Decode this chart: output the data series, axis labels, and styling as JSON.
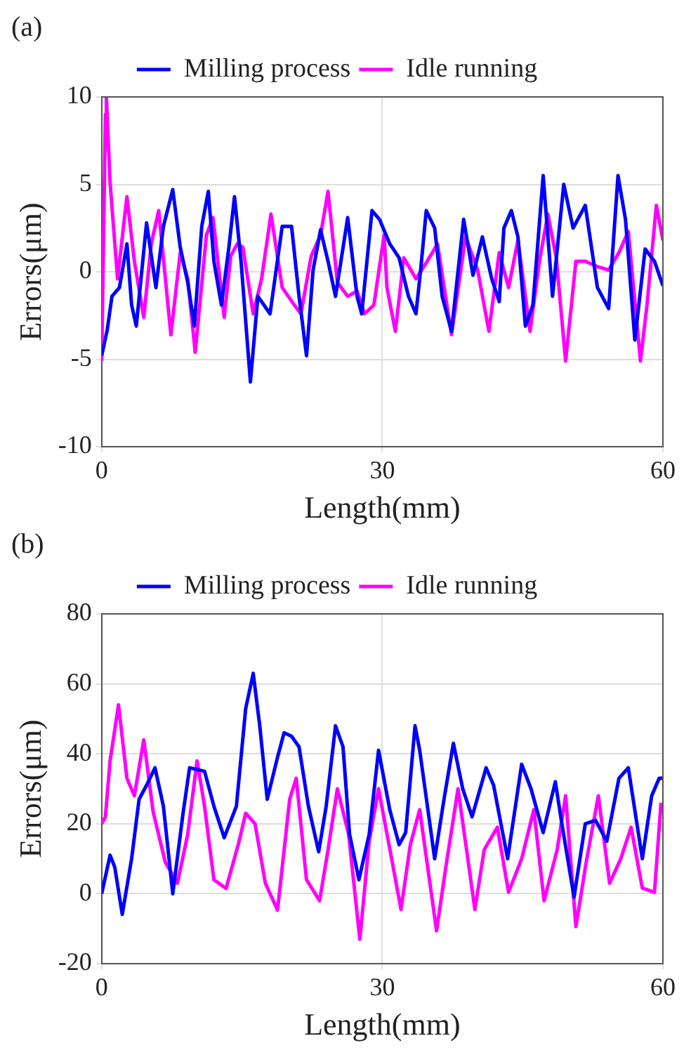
{
  "chart_data": [
    {
      "type": "line",
      "title": "(a)",
      "xlabel": "Length(mm)",
      "ylabel": "Errors(μm)",
      "xlim": [
        0,
        60
      ],
      "xticks": [
        0,
        30,
        60
      ],
      "ylim": [
        -10,
        10
      ],
      "yticks": [
        -10,
        -5,
        0,
        5,
        10
      ],
      "grid": true,
      "legend": "top",
      "line_style": "solid",
      "marker": "none",
      "series": [
        {
          "name": "Milling process",
          "color": "#0000ff",
          "x": [
            0,
            0.6,
            1.1,
            1.9,
            2.7,
            3.2,
            3.7,
            4.8,
            5.8,
            6.6,
            7.6,
            8.4,
            9.2,
            9.9,
            10.7,
            11.4,
            12.0,
            12.8,
            13.6,
            14.2,
            14.9,
            15.9,
            16.7,
            18.0,
            19.3,
            20.3,
            21.1,
            21.9,
            22.6,
            23.4,
            24.2,
            25.0,
            26.3,
            27.3,
            27.8,
            28.9,
            29.7,
            30.8,
            31.8,
            32.8,
            33.6,
            34.1,
            34.7,
            35.6,
            36.4,
            37.4,
            38.7,
            39.7,
            40.7,
            41.7,
            42.5,
            43.0,
            43.8,
            44.5,
            45.3,
            46.1,
            47.2,
            48.2,
            49.4,
            50.4,
            51.7,
            53.0,
            54.2,
            55.2,
            56.0,
            57.0,
            58.1,
            59.1,
            60
          ],
          "values": [
            -4.8,
            -3.3,
            -1.4,
            -0.9,
            1.6,
            -1.9,
            -3.1,
            2.8,
            -0.9,
            2.6,
            4.7,
            1.4,
            -0.6,
            -3.1,
            2.6,
            4.6,
            0.6,
            -1.9,
            1.4,
            4.3,
            0.6,
            -6.3,
            -1.4,
            -2.4,
            2.6,
            2.6,
            -1.4,
            -4.8,
            0.1,
            2.4,
            0.6,
            -1.4,
            3.1,
            -1.4,
            -2.4,
            3.5,
            3.0,
            1.6,
            0.8,
            -1.4,
            -2.4,
            0.1,
            3.5,
            2.5,
            -1.4,
            -3.4,
            3.0,
            -0.2,
            2.0,
            -0.4,
            -1.7,
            2.5,
            3.5,
            2.0,
            -3.1,
            -1.9,
            5.5,
            -1.4,
            5.0,
            2.5,
            3.8,
            -0.9,
            -2.1,
            5.5,
            3.0,
            -3.9,
            1.3,
            0.6,
            -0.8
          ]
        },
        {
          "name": "Idle running",
          "color": "#ff00ff",
          "x": [
            0,
            0.4,
            0.5,
            0.9,
            1.7,
            2.7,
            3.5,
            4.5,
            5.3,
            6.1,
            7.4,
            8.4,
            9.2,
            10.0,
            11.2,
            11.9,
            13.1,
            13.8,
            14.5,
            15.1,
            16.2,
            17.1,
            18.1,
            19.3,
            20.6,
            21.3,
            22.4,
            23.4,
            24.2,
            25.2,
            26.3,
            27.3,
            28.1,
            29.1,
            30.2,
            30.5,
            31.4,
            32.3,
            33.6,
            34.8,
            35.9,
            37.4,
            38.9,
            40.2,
            41.4,
            42.5,
            43.5,
            44.5,
            45.8,
            46.8,
            47.7,
            48.6,
            49.6,
            50.7,
            51.7,
            53.0,
            54.2,
            55.3,
            56.3,
            57.6,
            58.3,
            59.3,
            60
          ],
          "values": [
            -5.1,
            9.0,
            10,
            5.1,
            -0.4,
            4.3,
            0.6,
            -2.6,
            1.6,
            3.5,
            -3.6,
            1.1,
            -0.4,
            -4.6,
            2.1,
            3.1,
            -2.6,
            0.9,
            1.6,
            1.4,
            -2.4,
            -0.4,
            3.3,
            -0.9,
            -1.9,
            -2.4,
            0.9,
            2.1,
            4.6,
            -0.6,
            -1.4,
            -1.1,
            -2.4,
            -1.9,
            2.1,
            -0.9,
            -3.4,
            0.8,
            -0.4,
            0.6,
            1.6,
            -3.6,
            2.0,
            0.1,
            -3.4,
            1.1,
            -0.9,
            1.8,
            -3.4,
            0.6,
            3.3,
            0.8,
            -5.1,
            0.6,
            0.6,
            0.3,
            0.1,
            1.1,
            2.3,
            -5.1,
            -1.9,
            3.8,
            1.8
          ]
        }
      ]
    },
    {
      "type": "line",
      "title": "(b)",
      "xlabel": "Length(mm)",
      "ylabel": "Errors(μm)",
      "xlim": [
        0,
        60
      ],
      "xticks": [
        0,
        30,
        60
      ],
      "ylim": [
        -20,
        80
      ],
      "yticks": [
        -20,
        0,
        20,
        40,
        60,
        80
      ],
      "grid": true,
      "legend": "top",
      "line_style": "solid",
      "marker": "none",
      "series": [
        {
          "name": "Milling process",
          "color": "#0000ff",
          "x": [
            0,
            0.9,
            1.4,
            2.2,
            3.2,
            4.0,
            4.8,
            5.7,
            6.6,
            7.6,
            8.7,
            9.4,
            11.0,
            12.0,
            13.1,
            14.4,
            15.4,
            16.2,
            16.9,
            17.7,
            18.8,
            19.5,
            20.3,
            21.1,
            22.1,
            23.2,
            24.0,
            25.0,
            25.8,
            26.5,
            27.5,
            28.6,
            29.6,
            30.8,
            31.8,
            32.5,
            33.5,
            34.0,
            35.6,
            36.6,
            37.6,
            38.6,
            39.6,
            41.1,
            41.9,
            43.4,
            44.9,
            45.9,
            47.2,
            48.5,
            49.2,
            50.5,
            51.7,
            52.8,
            54.0,
            55.3,
            56.3,
            57.8,
            58.8,
            59.6,
            60
          ],
          "values": [
            0,
            11,
            7.6,
            -5.9,
            10,
            27,
            31,
            36,
            25,
            0,
            23,
            36,
            35,
            25,
            16,
            25,
            53,
            63,
            48,
            27,
            39,
            46,
            45,
            42,
            25,
            12,
            25,
            48,
            42,
            17,
            4,
            17,
            41,
            24,
            14,
            17.5,
            48,
            41,
            10,
            27,
            43,
            30,
            22,
            36,
            31,
            10,
            37,
            30,
            17.5,
            32,
            20,
            -1,
            20,
            21,
            15,
            33,
            36,
            10,
            28,
            33,
            33
          ]
        },
        {
          "name": "Idle running",
          "color": "#ff00ff",
          "x": [
            0,
            0.4,
            0.9,
            1.8,
            2.7,
            3.5,
            4.5,
            5.5,
            6.8,
            8.1,
            9.2,
            10.2,
            11.0,
            12.0,
            13.3,
            14.6,
            15.4,
            16.4,
            17.5,
            18.8,
            20.1,
            20.8,
            21.9,
            23.3,
            24.2,
            25.2,
            26.4,
            27.6,
            28.6,
            29.6,
            31.0,
            32.0,
            33.0,
            34.0,
            35.8,
            36.8,
            38.1,
            39.9,
            40.9,
            42.3,
            43.5,
            44.9,
            46.2,
            47.3,
            48.7,
            49.6,
            50.7,
            51.8,
            53.1,
            54.3,
            55.5,
            56.6,
            57.8,
            59.1,
            59.8
          ],
          "values": [
            20,
            22,
            38,
            54,
            33,
            28,
            44,
            23.5,
            9,
            3,
            17,
            38,
            25,
            4,
            1.5,
            14,
            23,
            20,
            3,
            -4.7,
            27,
            33,
            4,
            -2,
            12.5,
            30,
            17,
            -13,
            15,
            30,
            10,
            -4.5,
            14,
            24,
            -10.6,
            7.7,
            30,
            -4.5,
            12.6,
            19,
            0.4,
            10,
            24,
            -2,
            12.6,
            28,
            -9.4,
            9,
            28,
            3,
            10,
            19,
            1.6,
            0.4,
            26
          ]
        }
      ]
    }
  ]
}
